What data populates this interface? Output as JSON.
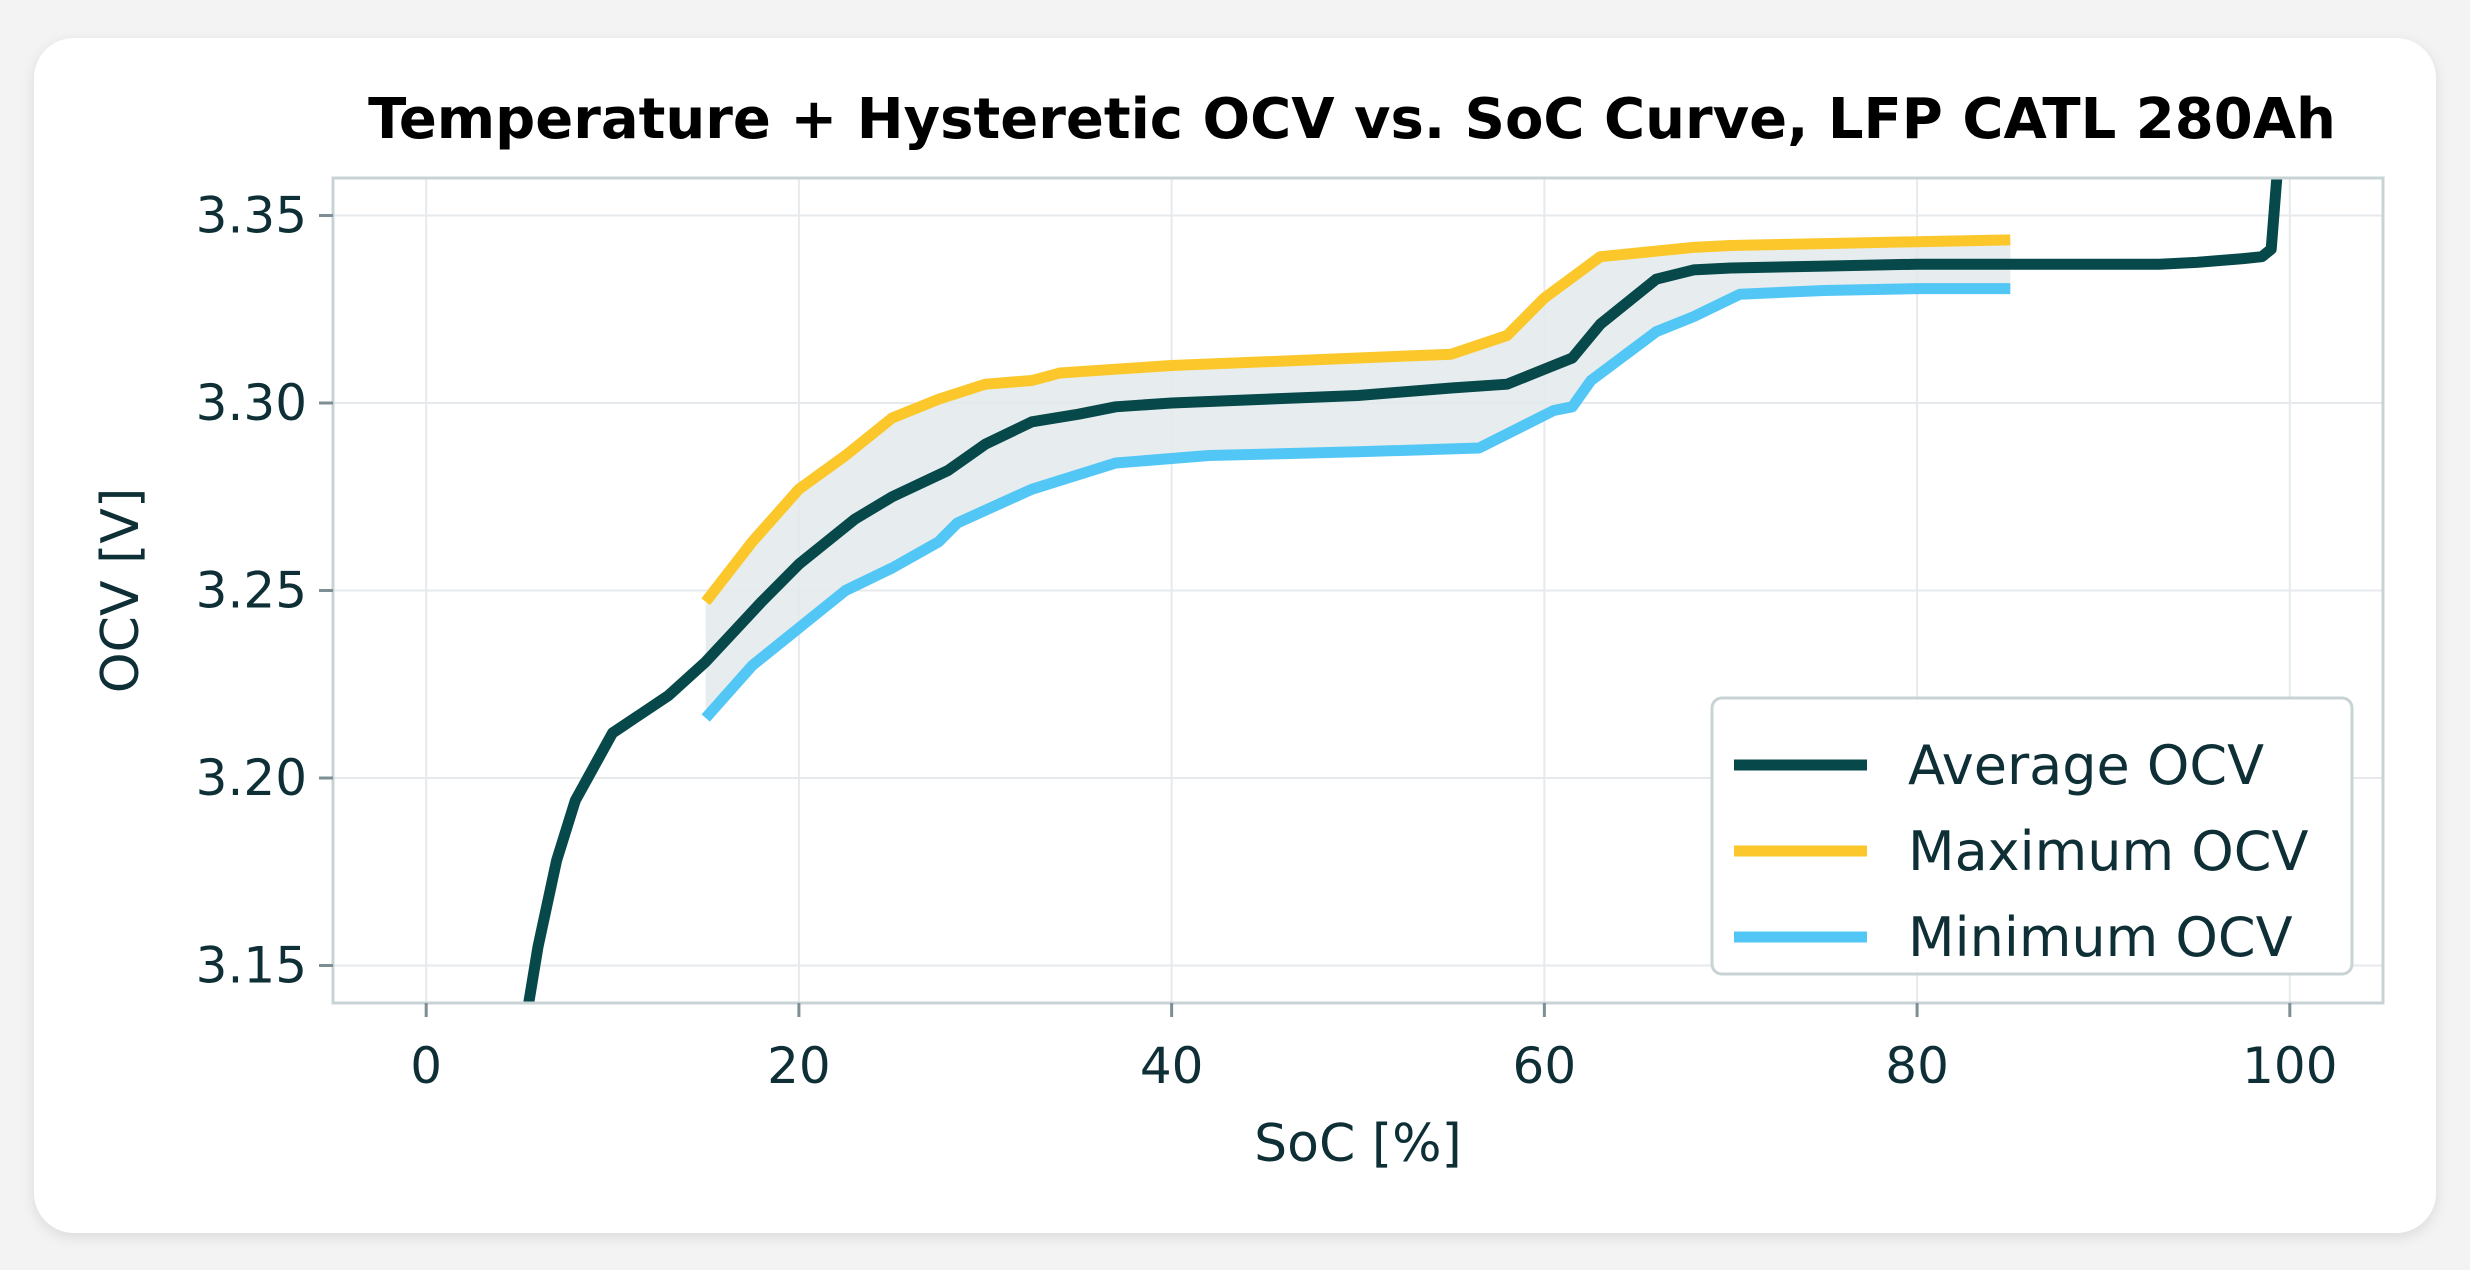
{
  "chart_data": {
    "type": "line",
    "title": "Temperature + Hysteretic OCV vs. SoC Curve, LFP CATL 280Ah",
    "xlabel": "SoC [%]",
    "ylabel": "OCV [V]",
    "xlim": [
      -5,
      105
    ],
    "ylim": [
      3.14,
      3.36
    ],
    "xticks": [
      0,
      20,
      40,
      60,
      80,
      100
    ],
    "yticks": [
      3.15,
      3.2,
      3.25,
      3.3,
      3.35
    ],
    "xtick_labels": [
      "0",
      "20",
      "40",
      "60",
      "80",
      "100"
    ],
    "ytick_labels": [
      "3.15",
      "3.20",
      "3.25",
      "3.30",
      "3.35"
    ],
    "grid": true,
    "legend_position": "lower-right",
    "shaded_band": {
      "between": [
        "Minimum OCV",
        "Maximum OCV"
      ],
      "color": "#e3eaec"
    },
    "series": [
      {
        "name": "Average OCV",
        "color": "#07484a",
        "x": [
          5.5,
          6,
          7,
          8,
          10,
          13,
          15,
          18,
          20,
          23,
          25,
          28,
          30,
          32.5,
          35,
          37,
          40,
          45,
          50,
          55,
          58,
          60,
          61.5,
          63,
          66,
          68,
          70,
          75,
          80,
          85,
          90,
          93,
          95,
          97.5,
          98.5,
          99,
          99.3
        ],
        "y": [
          3.14,
          3.155,
          3.178,
          3.194,
          3.212,
          3.222,
          3.231,
          3.247,
          3.257,
          3.269,
          3.275,
          3.282,
          3.289,
          3.295,
          3.297,
          3.299,
          3.3,
          3.301,
          3.302,
          3.304,
          3.305,
          3.309,
          3.312,
          3.321,
          3.333,
          3.3355,
          3.336,
          3.3365,
          3.337,
          3.337,
          3.337,
          3.337,
          3.3375,
          3.3385,
          3.339,
          3.341,
          3.36
        ]
      },
      {
        "name": "Maximum OCV",
        "color": "#fbc72a",
        "x": [
          15,
          17.5,
          20,
          22.5,
          25,
          27.5,
          30,
          32.5,
          34,
          37,
          40,
          45,
          50,
          55,
          58,
          60,
          63,
          65,
          68,
          70,
          75,
          80,
          85
        ],
        "y": [
          3.247,
          3.263,
          3.277,
          3.286,
          3.296,
          3.301,
          3.305,
          3.306,
          3.308,
          3.309,
          3.31,
          3.311,
          3.312,
          3.313,
          3.318,
          3.328,
          3.339,
          3.34,
          3.3415,
          3.342,
          3.3425,
          3.343,
          3.3435
        ]
      },
      {
        "name": "Minimum OCV",
        "color": "#52c7f5",
        "x": [
          15,
          17.5,
          20,
          22.5,
          25,
          27.5,
          28.5,
          32.5,
          37,
          42,
          50,
          56.5,
          60.5,
          61.5,
          62.5,
          66,
          68,
          70.5,
          75,
          80,
          85
        ],
        "y": [
          3.216,
          3.23,
          3.24,
          3.25,
          3.256,
          3.263,
          3.268,
          3.277,
          3.284,
          3.286,
          3.287,
          3.288,
          3.298,
          3.299,
          3.306,
          3.319,
          3.323,
          3.329,
          3.33,
          3.3305,
          3.3305
        ]
      }
    ]
  }
}
